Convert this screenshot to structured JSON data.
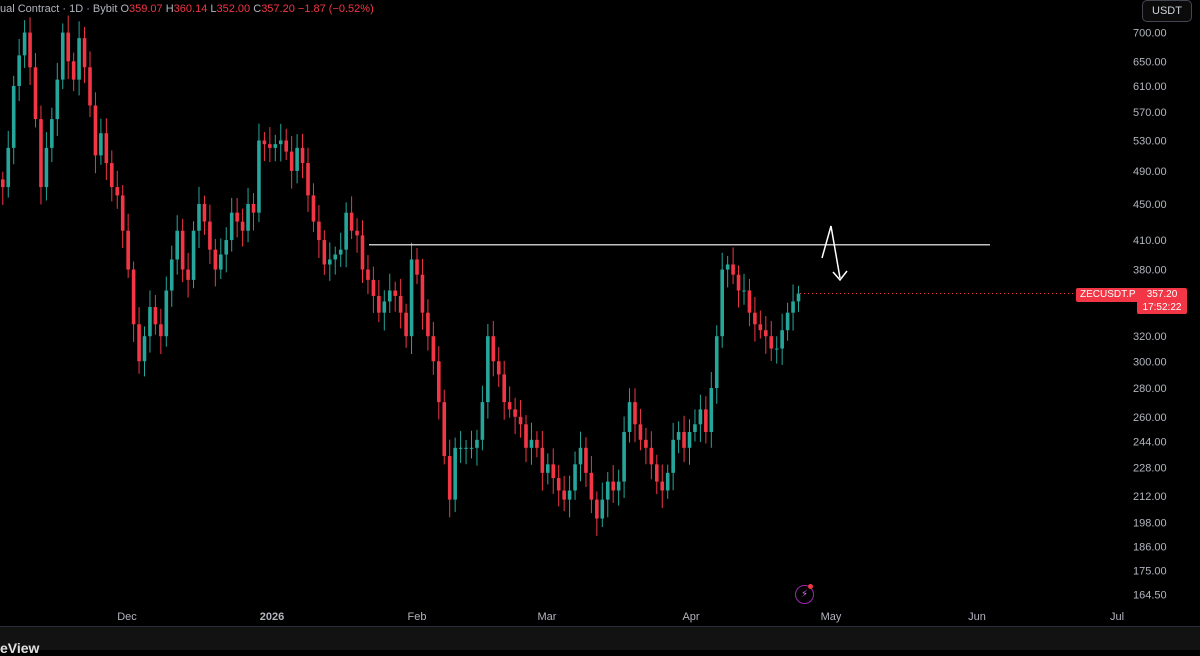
{
  "header": {
    "contract": "ual Contract · 1D · Bybit",
    "o_label": "O",
    "o_value": "359.07",
    "h_label": "H",
    "h_value": "360.14",
    "l_label": "L",
    "l_value": "352.00",
    "c_label": "C",
    "c_value": "357.20",
    "change": "−1.87 (−0.52%)"
  },
  "currency_button": "USDT",
  "symbol_tag": "ZECUSDT.P",
  "last_price": "357.20",
  "countdown": "17:52:22",
  "footer_logo": "eView",
  "colors": {
    "up": "#26a69a",
    "down": "#f23645",
    "background": "#000000",
    "level_line": "#ffffff",
    "icon": "#9c27b0"
  },
  "icons": {
    "alert": "lightning-icon"
  },
  "chart_data": {
    "type": "candlestick",
    "title": "",
    "xlabel": "",
    "ylabel": "",
    "y_scale": "log",
    "ylim": [
      158,
      760
    ],
    "x_tick_labels": [
      "Dec",
      "2026",
      "Feb",
      "Mar",
      "Apr",
      "May",
      "Jun",
      "Jul"
    ],
    "y_tick_labels": [
      "700.00",
      "650.00",
      "610.00",
      "570.00",
      "530.00",
      "490.00",
      "450.00",
      "410.00",
      "380.00",
      "320.00",
      "300.00",
      "280.00",
      "260.00",
      "244.00",
      "228.00",
      "212.00",
      "198.00",
      "186.00",
      "175.00",
      "164.50"
    ],
    "y_ticks": [
      700,
      650,
      610,
      570,
      530,
      490,
      450,
      410,
      380,
      320,
      300,
      280,
      260,
      244,
      228,
      212,
      198,
      186,
      175,
      164.5
    ],
    "grid": false,
    "horizontal_level": 405,
    "closes": [
      470,
      520,
      610,
      660,
      700,
      640,
      560,
      470,
      520,
      560,
      620,
      700,
      650,
      620,
      690,
      640,
      580,
      510,
      540,
      500,
      470,
      460,
      420,
      380,
      330,
      300,
      320,
      345,
      330,
      320,
      360,
      390,
      420,
      380,
      370,
      420,
      450,
      430,
      400,
      380,
      395,
      410,
      440,
      430,
      420,
      450,
      440,
      530,
      525,
      520,
      525,
      530,
      515,
      490,
      520,
      500,
      460,
      430,
      410,
      385,
      390,
      395,
      400,
      440,
      420,
      415,
      380,
      370,
      355,
      340,
      350,
      360,
      355,
      340,
      320,
      390,
      375,
      340,
      320,
      300,
      270,
      235,
      210,
      240,
      240,
      240,
      240,
      245,
      270,
      320,
      300,
      290,
      270,
      265,
      260,
      255,
      240,
      245,
      240,
      225,
      230,
      222,
      215,
      210,
      215,
      230,
      240,
      225,
      210,
      200,
      210,
      220,
      215,
      220,
      250,
      270,
      255,
      245,
      240,
      230,
      220,
      215,
      225,
      245,
      250,
      240,
      250,
      255,
      265,
      250,
      280,
      320,
      380,
      385,
      375,
      360,
      360,
      340,
      330,
      325,
      320,
      310,
      310,
      325,
      340,
      350,
      357.2
    ],
    "last_close": 357.2
  }
}
